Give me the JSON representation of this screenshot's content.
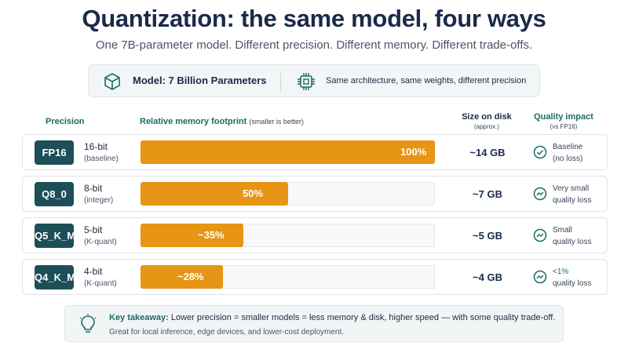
{
  "title": "Quantization: the same model, four ways",
  "subtitle": "One 7B-parameter model. Different precision. Different memory. Different trade-offs.",
  "model": {
    "label": "Model: 7 Billion Parameters",
    "note": "Same architecture, same weights, different precision",
    "cube_icon": "cube-icon",
    "chip_icon": "chip-icon"
  },
  "headers": {
    "precision": "Precision",
    "memory": "Relative memory footprint",
    "memory_note": "(smaller is better)",
    "size": "Size on disk",
    "size_note": "(approx.)",
    "quality": "Quality impact",
    "quality_note": "(vs FP16)"
  },
  "colors": {
    "badge": "#1c4f57",
    "bar": "#e69514",
    "accent": "#1e6b64"
  },
  "rows": [
    {
      "badge": "FP16",
      "bits": "16-bit",
      "sub": "(baseline)",
      "pct_label": "100%",
      "fraction": 1.0,
      "size": "~14 GB",
      "quality_icon": "check-circle-icon",
      "quality_line1": "Baseline",
      "quality_line2": "(no loss)"
    },
    {
      "badge": "Q8_0",
      "bits": "8-bit",
      "sub": "(integer)",
      "pct_label": "50%",
      "fraction": 0.5,
      "size": "~7 GB",
      "quality_icon": "trend-line-icon",
      "quality_line1": "Very small",
      "quality_line2": "quality loss"
    },
    {
      "badge": "Q5_K_M",
      "bits": "5-bit",
      "sub": "(K-quant)",
      "pct_label": "~35%",
      "fraction": 0.35,
      "size": "~5 GB",
      "quality_icon": "trend-line-icon",
      "quality_line1": "Small",
      "quality_line2": "quality loss"
    },
    {
      "badge": "Q4_K_M",
      "bits": "4-bit",
      "sub": "(K-quant)",
      "pct_label": "~28%",
      "fraction": 0.28,
      "size": "~4 GB",
      "quality_icon": "trend-line-icon",
      "quality_line1": "<1%",
      "quality_line2": "quality loss"
    }
  ],
  "takeaway": {
    "label": "Key takeaway:",
    "text": " Lower precision = smaller models = less memory & disk, higher speed — with some quality trade-off.",
    "line2": "Great for local inference, edge devices, and lower-cost deployment.",
    "icon": "lightbulb-icon"
  }
}
